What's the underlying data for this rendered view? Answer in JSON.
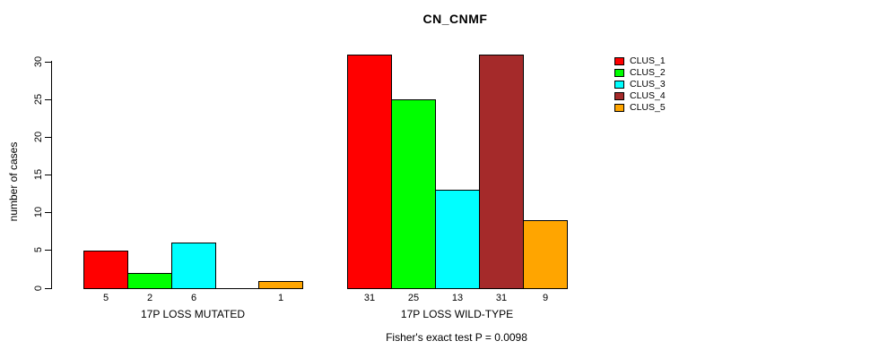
{
  "chart_data": {
    "type": "bar",
    "title": "CN_CNMF",
    "xlabel": "",
    "ylabel": "number of cases",
    "ylim": [
      0,
      31
    ],
    "yticks": [
      0,
      5,
      10,
      15,
      20,
      25,
      30
    ],
    "grid": false,
    "legend_position": "right-outside-top",
    "categories": [
      "17P LOSS MUTATED",
      "17P LOSS WILD-TYPE"
    ],
    "series": [
      {
        "name": "CLUS_1",
        "color": "#FF0000",
        "values": [
          5,
          31
        ]
      },
      {
        "name": "CLUS_2",
        "color": "#00FF00",
        "values": [
          2,
          25
        ]
      },
      {
        "name": "CLUS_3",
        "color": "#00FFFF",
        "values": [
          6,
          13
        ]
      },
      {
        "name": "CLUS_4",
        "color": "#A52A2A",
        "values": [
          0,
          31
        ]
      },
      {
        "name": "CLUS_5",
        "color": "#FFA500",
        "values": [
          1,
          9
        ]
      }
    ],
    "bar_value_labels": {
      "shown": true,
      "hide_zero": true
    },
    "annotation": "Fisher's exact test P = 0.0098"
  }
}
